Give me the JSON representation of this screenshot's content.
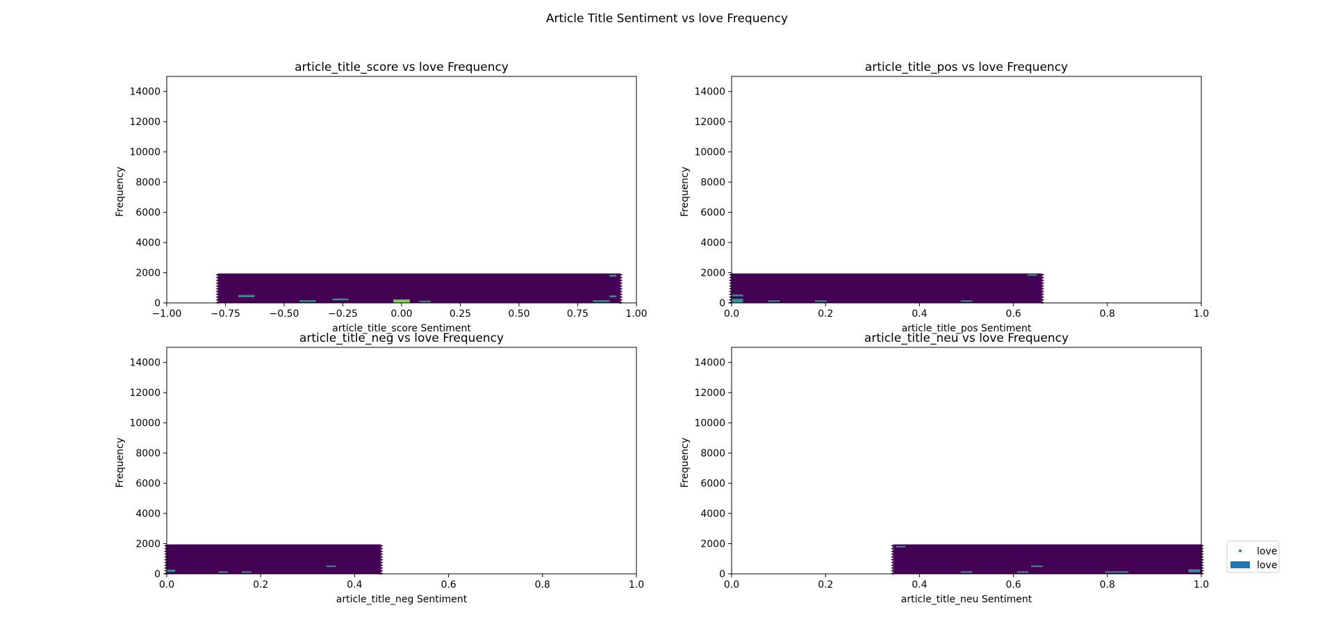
{
  "figure": {
    "title": "Article Title Sentiment vs love Frequency"
  },
  "legend": {
    "placement": "lower-right, outside plots",
    "entries": [
      {
        "label": "love",
        "marker": "point",
        "color": "#1f77b4"
      },
      {
        "label": "love",
        "marker": "patch",
        "color": "#1f77b4"
      }
    ]
  },
  "colors": {
    "low": "#440154",
    "mid": "#3b8a8c",
    "high": "#7ad151",
    "series": "#1f77b4"
  },
  "chart_data": [
    {
      "type": "heatmap",
      "title": "article_title_score vs love Frequency",
      "xlabel": "article_title_score Sentiment",
      "ylabel": "Frequency",
      "xlim": [
        -1.0,
        1.0
      ],
      "ylim": [
        0,
        15000
      ],
      "xticks": [
        -1.0,
        -0.75,
        -0.5,
        -0.25,
        0.0,
        0.25,
        0.5,
        0.75,
        1.0
      ],
      "xtick_labels": [
        "−1.00",
        "−0.75",
        "−0.50",
        "−0.25",
        "0.00",
        "0.25",
        "0.50",
        "0.75",
        "1.00"
      ],
      "yticks": [
        0,
        2000,
        4000,
        6000,
        8000,
        10000,
        12000,
        14000
      ],
      "ytick_labels": [
        "0",
        "2000",
        "4000",
        "6000",
        "8000",
        "10000",
        "12000",
        "14000"
      ],
      "data_extent": {
        "x": [
          -0.78,
          0.93
        ],
        "y": [
          0,
          1950
        ]
      },
      "hot_cells": [
        {
          "x": 0.0,
          "y": 100,
          "w": 0.07,
          "h": 250,
          "level": "high"
        },
        {
          "x": -0.66,
          "y": 450,
          "w": 0.07,
          "h": 150,
          "level": "mid"
        },
        {
          "x": -0.4,
          "y": 120,
          "w": 0.07,
          "h": 120,
          "level": "mid"
        },
        {
          "x": -0.26,
          "y": 230,
          "w": 0.07,
          "h": 120,
          "level": "mid"
        },
        {
          "x": 0.1,
          "y": 100,
          "w": 0.05,
          "h": 100,
          "level": "mid"
        },
        {
          "x": 0.85,
          "y": 120,
          "w": 0.07,
          "h": 120,
          "level": "mid"
        },
        {
          "x": 0.9,
          "y": 430,
          "w": 0.03,
          "h": 120,
          "level": "mid"
        },
        {
          "x": 0.9,
          "y": 1800,
          "w": 0.03,
          "h": 120,
          "level": "mid"
        }
      ]
    },
    {
      "type": "heatmap",
      "title": "article_title_pos vs love Frequency",
      "xlabel": "article_title_pos Sentiment",
      "ylabel": "Frequency",
      "xlim": [
        0.0,
        1.0
      ],
      "ylim": [
        0,
        15000
      ],
      "xticks": [
        0.0,
        0.2,
        0.4,
        0.6,
        0.8,
        1.0
      ],
      "xtick_labels": [
        "0.0",
        "0.2",
        "0.4",
        "0.6",
        "0.8",
        "1.0"
      ],
      "yticks": [
        0,
        2000,
        4000,
        6000,
        8000,
        10000,
        12000,
        14000
      ],
      "ytick_labels": [
        "0",
        "2000",
        "4000",
        "6000",
        "8000",
        "10000",
        "12000",
        "14000"
      ],
      "data_extent": {
        "x": [
          0.0,
          0.66
        ],
        "y": [
          0,
          1950
        ]
      },
      "hot_cells": [
        {
          "x": 0.012,
          "y": 150,
          "w": 0.025,
          "h": 250,
          "level": "mid"
        },
        {
          "x": 0.012,
          "y": 500,
          "w": 0.025,
          "h": 120,
          "level": "mid"
        },
        {
          "x": 0.09,
          "y": 120,
          "w": 0.025,
          "h": 100,
          "level": "mid"
        },
        {
          "x": 0.19,
          "y": 120,
          "w": 0.025,
          "h": 100,
          "level": "mid"
        },
        {
          "x": 0.5,
          "y": 120,
          "w": 0.025,
          "h": 100,
          "level": "mid"
        },
        {
          "x": 0.64,
          "y": 1850,
          "w": 0.02,
          "h": 100,
          "level": "mid"
        }
      ]
    },
    {
      "type": "heatmap",
      "title": "article_title_neg vs love Frequency",
      "xlabel": "article_title_neg Sentiment",
      "ylabel": "Frequency",
      "xlim": [
        0.0,
        1.0
      ],
      "ylim": [
        0,
        15000
      ],
      "xticks": [
        0.0,
        0.2,
        0.4,
        0.6,
        0.8,
        1.0
      ],
      "xtick_labels": [
        "0.0",
        "0.2",
        "0.4",
        "0.6",
        "0.8",
        "1.0"
      ],
      "yticks": [
        0,
        2000,
        4000,
        6000,
        8000,
        10000,
        12000,
        14000
      ],
      "ytick_labels": [
        "0",
        "2000",
        "4000",
        "6000",
        "8000",
        "10000",
        "12000",
        "14000"
      ],
      "data_extent": {
        "x": [
          0.0,
          0.455
        ],
        "y": [
          0,
          1950
        ]
      },
      "hot_cells": [
        {
          "x": 0.008,
          "y": 200,
          "w": 0.02,
          "h": 150,
          "level": "mid"
        },
        {
          "x": 0.12,
          "y": 120,
          "w": 0.02,
          "h": 100,
          "level": "mid"
        },
        {
          "x": 0.17,
          "y": 120,
          "w": 0.02,
          "h": 100,
          "level": "mid"
        },
        {
          "x": 0.35,
          "y": 500,
          "w": 0.02,
          "h": 100,
          "level": "mid"
        }
      ]
    },
    {
      "type": "heatmap",
      "title": "article_title_neu vs love Frequency",
      "xlabel": "article_title_neu Sentiment",
      "ylabel": "Frequency",
      "xlim": [
        0.0,
        1.0
      ],
      "ylim": [
        0,
        15000
      ],
      "xticks": [
        0.0,
        0.2,
        0.4,
        0.6,
        0.8,
        1.0
      ],
      "xtick_labels": [
        "0.0",
        "0.2",
        "0.4",
        "0.6",
        "0.8",
        "1.0"
      ],
      "yticks": [
        0,
        2000,
        4000,
        6000,
        8000,
        10000,
        12000,
        14000
      ],
      "ytick_labels": [
        "0",
        "2000",
        "4000",
        "6000",
        "8000",
        "10000",
        "12000",
        "14000"
      ],
      "data_extent": {
        "x": [
          0.345,
          1.0
        ],
        "y": [
          0,
          1950
        ]
      },
      "hot_cells": [
        {
          "x": 0.5,
          "y": 120,
          "w": 0.025,
          "h": 100,
          "level": "mid"
        },
        {
          "x": 0.62,
          "y": 120,
          "w": 0.025,
          "h": 100,
          "level": "mid"
        },
        {
          "x": 0.65,
          "y": 500,
          "w": 0.025,
          "h": 100,
          "level": "mid"
        },
        {
          "x": 0.82,
          "y": 120,
          "w": 0.05,
          "h": 100,
          "level": "mid"
        },
        {
          "x": 0.985,
          "y": 200,
          "w": 0.025,
          "h": 200,
          "level": "mid"
        },
        {
          "x": 0.36,
          "y": 1800,
          "w": 0.02,
          "h": 100,
          "level": "mid"
        }
      ]
    }
  ]
}
